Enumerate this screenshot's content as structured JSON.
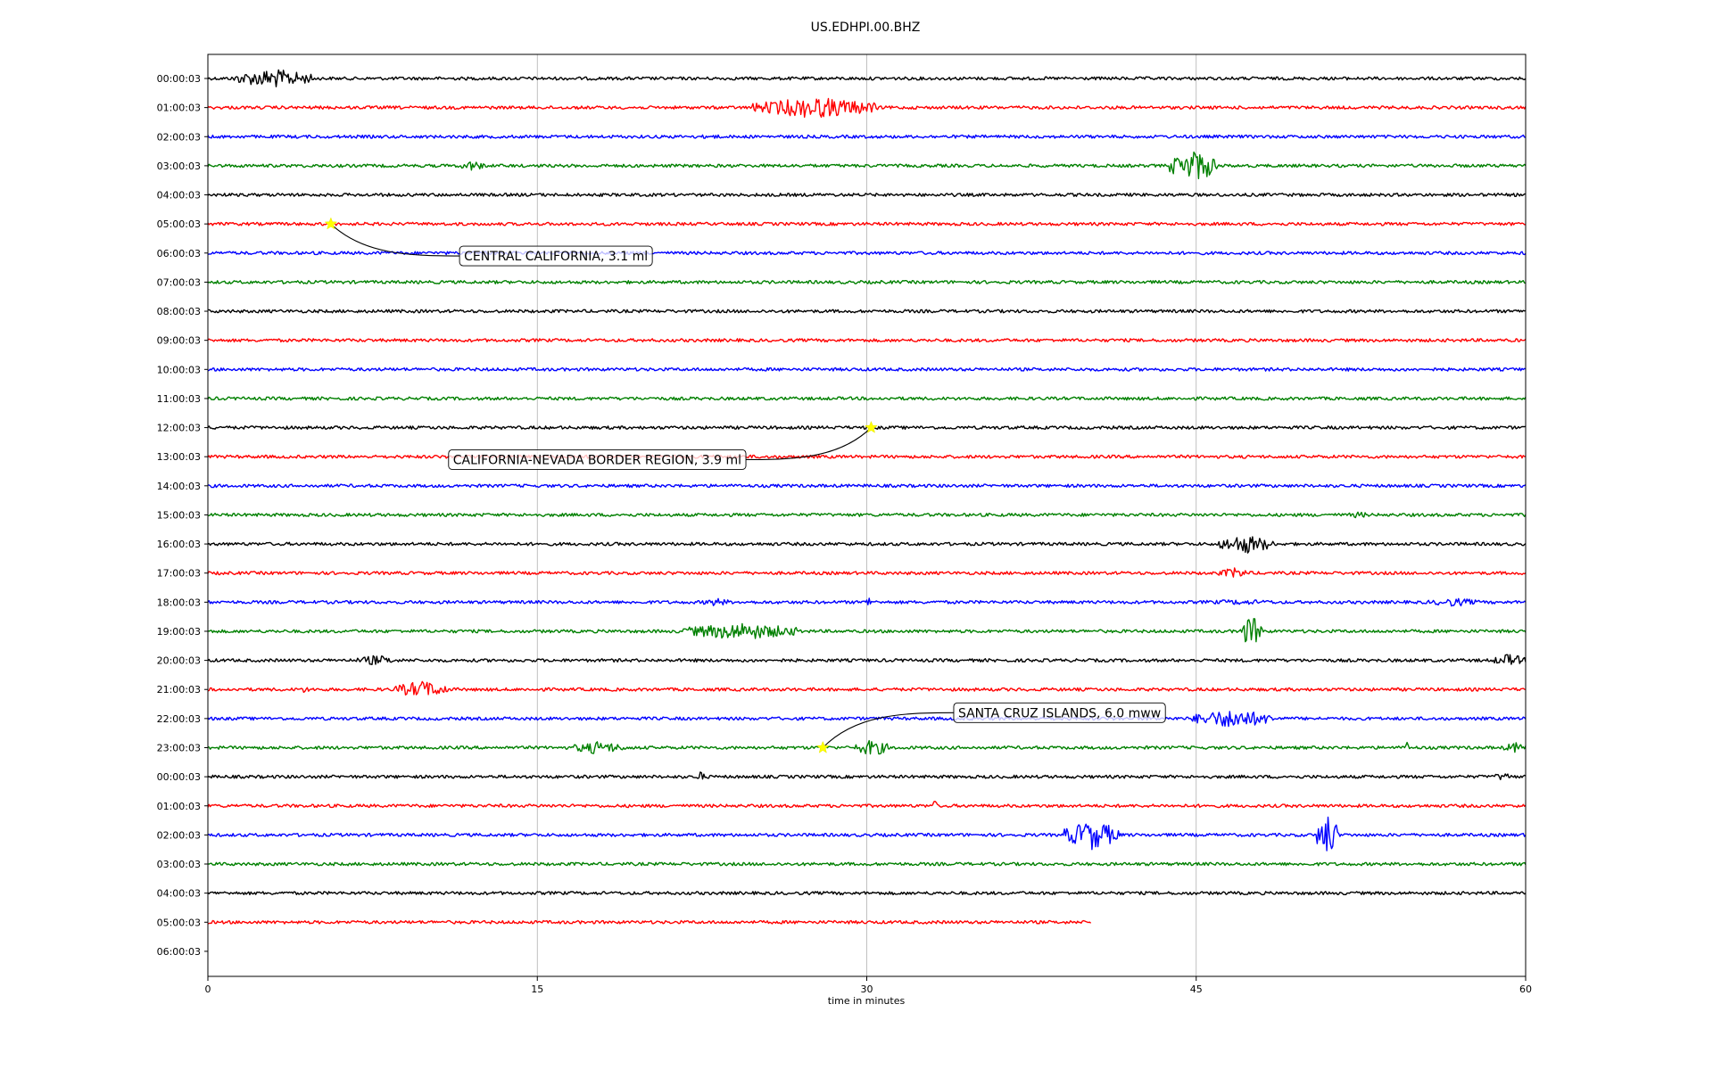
{
  "chart_data": {
    "type": "line",
    "title": "US.EDHPI.00.BHZ",
    "xlabel": "time in minutes",
    "ylabel": "",
    "xlim": [
      0,
      60
    ],
    "x_ticks": [
      0,
      15,
      30,
      45,
      60
    ],
    "grid": "vertical lines at x ticks",
    "row_labels": [
      "00:00:03",
      "01:00:03",
      "02:00:03",
      "03:00:03",
      "04:00:03",
      "05:00:03",
      "06:00:03",
      "07:00:03",
      "08:00:03",
      "09:00:03",
      "10:00:03",
      "11:00:03",
      "12:00:03",
      "13:00:03",
      "14:00:03",
      "15:00:03",
      "16:00:03",
      "17:00:03",
      "18:00:03",
      "19:00:03",
      "20:00:03",
      "21:00:03",
      "22:00:03",
      "23:00:03",
      "00:00:03",
      "01:00:03",
      "02:00:03",
      "03:00:03",
      "04:00:03",
      "05:00:03",
      "06:00:03"
    ],
    "color_cycle": [
      "#000000",
      "#ff0000",
      "#0000ff",
      "#008000"
    ],
    "last_trace_end_minutes": 40.2,
    "bursts": [
      {
        "row": 0,
        "start": 1.2,
        "end": 4.8,
        "amp": 0.9
      },
      {
        "row": 1,
        "start": 24.8,
        "end": 30.5,
        "amp": 1.0
      },
      {
        "row": 2,
        "start": 22.3,
        "end": 23.5,
        "amp": 0.25
      },
      {
        "row": 3,
        "start": 11.5,
        "end": 12.6,
        "amp": 0.5
      },
      {
        "row": 3,
        "start": 43.8,
        "end": 46.0,
        "amp": 1.5
      },
      {
        "row": 15,
        "start": 51.8,
        "end": 53.0,
        "amp": 0.3
      },
      {
        "row": 16,
        "start": 46.0,
        "end": 48.5,
        "amp": 0.9
      },
      {
        "row": 17,
        "start": 46.0,
        "end": 47.5,
        "amp": 0.5
      },
      {
        "row": 18,
        "start": 22.5,
        "end": 23.8,
        "amp": 0.4
      },
      {
        "row": 18,
        "start": 30.0,
        "end": 30.2,
        "amp": 0.7
      },
      {
        "row": 18,
        "start": 44.5,
        "end": 49.5,
        "amp": 0.25
      },
      {
        "row": 18,
        "start": 55.5,
        "end": 58.0,
        "amp": 0.4
      },
      {
        "row": 19,
        "start": 21.5,
        "end": 27.0,
        "amp": 0.8
      },
      {
        "row": 19,
        "start": 47.0,
        "end": 48.0,
        "amp": 1.5
      },
      {
        "row": 20,
        "start": 6.8,
        "end": 8.5,
        "amp": 0.5
      },
      {
        "row": 20,
        "start": 58.5,
        "end": 60.0,
        "amp": 0.6
      },
      {
        "row": 21,
        "start": 4.0,
        "end": 4.8,
        "amp": 0.3
      },
      {
        "row": 21,
        "start": 8.5,
        "end": 11.0,
        "amp": 0.8
      },
      {
        "row": 22,
        "start": 44.8,
        "end": 48.5,
        "amp": 0.9
      },
      {
        "row": 23,
        "start": 16.5,
        "end": 19.0,
        "amp": 0.6
      },
      {
        "row": 23,
        "start": 29.5,
        "end": 31.0,
        "amp": 0.8
      },
      {
        "row": 23,
        "start": 54.5,
        "end": 54.7,
        "amp": 0.6
      },
      {
        "row": 23,
        "start": 59.0,
        "end": 60.0,
        "amp": 0.5
      },
      {
        "row": 24,
        "start": 22.3,
        "end": 22.6,
        "amp": 0.6
      },
      {
        "row": 24,
        "start": 58.5,
        "end": 59.5,
        "amp": 0.4
      },
      {
        "row": 25,
        "start": 33.0,
        "end": 33.2,
        "amp": 0.6
      },
      {
        "row": 26,
        "start": 39.0,
        "end": 41.5,
        "amp": 1.4
      },
      {
        "row": 26,
        "start": 50.5,
        "end": 51.5,
        "amp": 2.0
      }
    ],
    "annotations": [
      {
        "text": "CENTRAL CALIFORNIA, 3.1 ml",
        "row": 5,
        "x": 5.6,
        "label_row": 6.1,
        "label_x": 11.5
      },
      {
        "text": "CALIFORNIA-NEVADA BORDER REGION, 3.9 ml",
        "row": 12,
        "x": 30.2,
        "label_row": 13.1,
        "label_x": 11.0
      },
      {
        "text": "SANTA CRUZ ISLANDS, 6.0 mww",
        "row": 23,
        "x": 28.0,
        "label_row": 21.8,
        "label_x": 34.0
      }
    ],
    "event_marker_color": "#ffff00"
  }
}
